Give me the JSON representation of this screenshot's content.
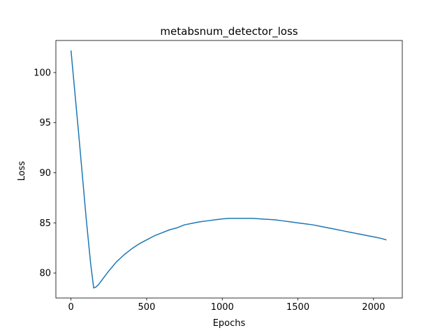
{
  "chart_data": {
    "type": "line",
    "title": "metabsnum_detector_loss",
    "xlabel": "Epochs",
    "ylabel": "Loss",
    "xlim": [
      -100,
      2190
    ],
    "ylim": [
      77.5,
      103.2
    ],
    "xticks": [
      0,
      500,
      1000,
      1500,
      2000
    ],
    "yticks": [
      80,
      85,
      90,
      95,
      100
    ],
    "grid": false,
    "legend": "none",
    "series": [
      {
        "color": "#1f77b4",
        "x": [
          0,
          50,
          100,
          130,
          150,
          165,
          180,
          200,
          250,
          300,
          350,
          400,
          450,
          500,
          550,
          600,
          650,
          700,
          750,
          800,
          850,
          900,
          950,
          1000,
          1050,
          1100,
          1150,
          1200,
          1250,
          1300,
          1350,
          1400,
          1450,
          1500,
          1550,
          1600,
          1650,
          1700,
          1750,
          1800,
          1850,
          1900,
          1950,
          2000,
          2050,
          2085
        ],
        "y": [
          102.2,
          94.0,
          85.5,
          80.9,
          78.5,
          78.6,
          78.8,
          79.2,
          80.2,
          81.1,
          81.8,
          82.4,
          82.9,
          83.3,
          83.7,
          84.0,
          84.3,
          84.5,
          84.8,
          84.95,
          85.1,
          85.2,
          85.3,
          85.4,
          85.45,
          85.45,
          85.45,
          85.45,
          85.4,
          85.35,
          85.3,
          85.2,
          85.1,
          85.0,
          84.9,
          84.8,
          84.65,
          84.5,
          84.35,
          84.2,
          84.05,
          83.9,
          83.75,
          83.6,
          83.45,
          83.3
        ]
      }
    ]
  }
}
